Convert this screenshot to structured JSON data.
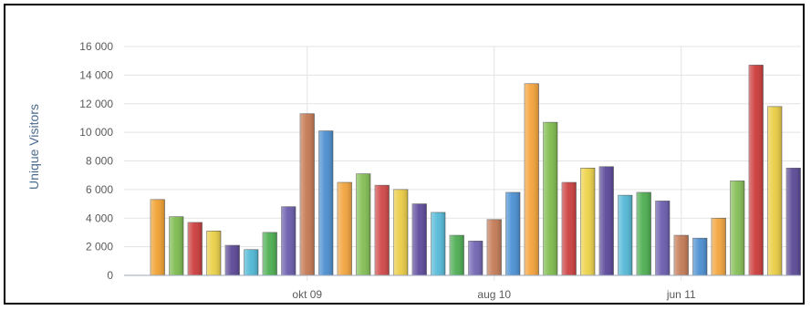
{
  "chart_data": {
    "type": "bar",
    "title": "",
    "xlabel": "",
    "ylabel": "Unique Visitors",
    "ylim": [
      0,
      16000
    ],
    "yticks": [
      {
        "value": 0,
        "label": "0"
      },
      {
        "value": 2000,
        "label": "2 000"
      },
      {
        "value": 4000,
        "label": "4 000"
      },
      {
        "value": 6000,
        "label": "6 000"
      },
      {
        "value": 8000,
        "label": "8 000"
      },
      {
        "value": 10000,
        "label": "10 000"
      },
      {
        "value": 12000,
        "label": "12 000"
      },
      {
        "value": 14000,
        "label": "14 000"
      },
      {
        "value": 16000,
        "label": "16 000"
      }
    ],
    "xticks": [
      {
        "after_bar": 8,
        "label": "okt 09"
      },
      {
        "after_bar": 18,
        "label": "aug 10"
      },
      {
        "after_bar": 28,
        "label": "jun 11"
      }
    ],
    "grid": true,
    "legend": "none",
    "values": [
      5300,
      4100,
      3700,
      3100,
      2100,
      1800,
      3000,
      4800,
      11300,
      10100,
      6500,
      7100,
      6300,
      6000,
      5000,
      4400,
      2800,
      2400,
      3900,
      5800,
      13400,
      10700,
      6500,
      7500,
      7600,
      5600,
      5800,
      5200,
      2800,
      2600,
      4000,
      6600,
      14700,
      11800,
      7500
    ],
    "colors": [
      "#f0a030",
      "#7dbb4e",
      "#cc3c3c",
      "#ead046",
      "#5b4796",
      "#4fb8d5",
      "#4caf50",
      "#6a5bab",
      "#c47852",
      "#4b8ecf",
      "#f2a43c",
      "#84be55",
      "#d04848",
      "#ebcc45",
      "#5d4a9c",
      "#55b9d8",
      "#4cac52",
      "#7264b3",
      "#c47a56",
      "#4a90d4",
      "#f5a33a",
      "#7fbb4d",
      "#cc3f3f",
      "#ecd248",
      "#5b479a",
      "#52b8d6",
      "#4dad50",
      "#6b5cae",
      "#c47a56",
      "#4b8fd1",
      "#f2a43c",
      "#84be55",
      "#cc3b3b",
      "#e9cd43",
      "#5a4896"
    ]
  }
}
